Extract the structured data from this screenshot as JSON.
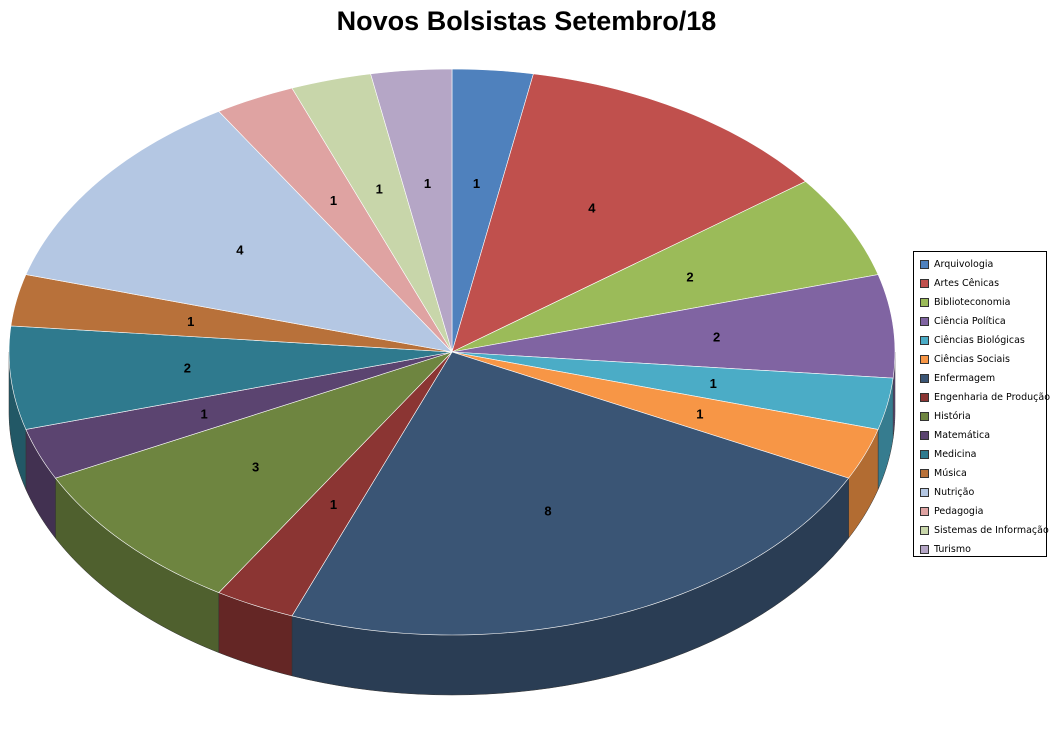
{
  "chart_data": {
    "type": "pie",
    "style": "3d",
    "title": "Novos Bolsistas Setembro/18",
    "legend_position": "right",
    "categories": [
      "Arquivologia",
      "Artes Cênicas",
      "Biblioteconomia",
      "Ciência Política",
      "Ciências Biológicas",
      "Ciências Sociais",
      "Enfermagem",
      "Engenharia de Produção",
      "História",
      "Matemática",
      "Medicina",
      "Música",
      "Nutrição",
      "Pedagogia",
      "Sistemas de Informação",
      "Turismo"
    ],
    "values": [
      1,
      4,
      2,
      2,
      1,
      1,
      8,
      1,
      3,
      1,
      2,
      1,
      4,
      1,
      1,
      1
    ],
    "colors": [
      "#4F81BD",
      "#C0504D",
      "#9BBB59",
      "#8064A2",
      "#4BACC6",
      "#F79646",
      "#3A5575",
      "#8B3533",
      "#6E8540",
      "#5B4470",
      "#2F7A8E",
      "#B8713A",
      "#B4C7E3",
      "#DFA3A2",
      "#C8D6AA",
      "#B5A6C6"
    ]
  }
}
